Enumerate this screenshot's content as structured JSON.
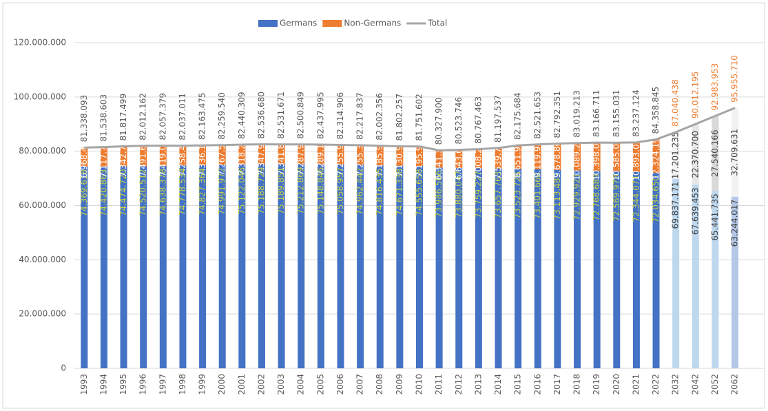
{
  "chart_data": {
    "type": "stacked_bar_line",
    "categories": [
      "1993",
      "1994",
      "1995",
      "1996",
      "1997",
      "1998",
      "1999",
      "2000",
      "2001",
      "2002",
      "2003",
      "2004",
      "2005",
      "2006",
      "2007",
      "2008",
      "2009",
      "2010",
      "2011",
      "2012",
      "2013",
      "2014",
      "2015",
      "2016",
      "2017",
      "2018",
      "2019",
      "2020",
      "2021",
      "2022",
      "2032",
      "2042",
      "2052",
      "2062"
    ],
    "series": [
      {
        "name": "Germans",
        "color": "#4472c4",
        "colors": [
          "#4472c4",
          "#4472c4",
          "#4472c4",
          "#4472c4",
          "#4472c4",
          "#4472c4",
          "#4472c4",
          "#4472c4",
          "#4472c4",
          "#4472c4",
          "#4472c4",
          "#4472c4",
          "#4472c4",
          "#4472c4",
          "#4472c4",
          "#4472c4",
          "#4472c4",
          "#4472c4",
          "#4472c4",
          "#4472c4",
          "#4472c4",
          "#4472c4",
          "#4472c4",
          "#4472c4",
          "#4472c4",
          "#4472c4",
          "#4472c4",
          "#4472c4",
          "#4472c4",
          "#4472c4",
          "#bdd7ee",
          "#bdd7ee",
          "#bdd7ee",
          "#b4c7e7"
        ],
        "values": [
          74369618,
          74420863,
          74474720,
          74520512,
          74638378,
          74778534,
          74827364,
          74991972,
          75122046,
          75188729,
          75189851,
          75212869,
          75148846,
          75058957,
          74962442,
          74816435,
          74671338,
          74555658,
          73986506,
          73880047,
          73759227,
          73657763,
          73523726,
          73401664,
          73113483,
          72929921,
          72768689,
          72569978,
          72344071,
          72034650,
          69837171,
          67639453,
          65441735,
          63244017
        ],
        "value_labels": [
          "74.369.618",
          "74.420.863",
          "74.474.720",
          "74.520.512",
          "74.638.378",
          "74.778.534",
          "74.827.364",
          "74.991.972",
          "75.122.046",
          "75.188.729",
          "75.189.851",
          "75.212.869",
          "75.148.846",
          "75.058.957",
          "74.962.442",
          "74.816.435",
          "74.671.338",
          "74.555.658",
          "73.986.506",
          "73.880.047",
          "73.759.227",
          "73.657.763",
          "73.523.726",
          "73.401.664",
          "73.113.483",
          "72.929.921",
          "72.768.689",
          "72.569.978",
          "72.344.071",
          "72.034.650",
          "69.837.171",
          "67.639.453",
          "65.441.735",
          "63.244.017"
        ]
      },
      {
        "name": "Non-Germans",
        "color": "#ed7d31",
        "colors": [
          "#ed7d31",
          "#ed7d31",
          "#ed7d31",
          "#ed7d31",
          "#ed7d31",
          "#ed7d31",
          "#ed7d31",
          "#ed7d31",
          "#ed7d31",
          "#ed7d31",
          "#ed7d31",
          "#ed7d31",
          "#ed7d31",
          "#ed7d31",
          "#ed7d31",
          "#ed7d31",
          "#ed7d31",
          "#ed7d31",
          "#ed7d31",
          "#ed7d31",
          "#ed7d31",
          "#ed7d31",
          "#ed7d31",
          "#ed7d31",
          "#ed7d31",
          "#ed7d31",
          "#ed7d31",
          "#ed7d31",
          "#ed7d31",
          "#ed7d31",
          "#f2f2f2",
          "#e7e6e6",
          "#d9d9d9",
          "#f2f2f2"
        ],
        "values": [
          6968475,
          7117740,
          7342779,
          7491650,
          7419001,
          7258477,
          7336111,
          7267568,
          7318263,
          7347951,
          7341820,
          7287980,
          7289149,
          7255949,
          7255395,
          7185921,
          7130919,
          7195944,
          6341394,
          6643699,
          7008236,
          7539774,
          8651958,
          9119989,
          9678868,
          10089292,
          10398022,
          10585053,
          10893053,
          12324195,
          17201235,
          22370700,
          27540166,
          32709631
        ],
        "value_labels": [
          "6.968.475",
          "7.117.740",
          "7.342.779",
          "7.491.650",
          "7.419.001",
          "7.258.477",
          "7.336.111",
          "7.267.568",
          "7.318.263",
          "7.347.951",
          "7.341.820",
          "7.287.980",
          "7.289.149",
          "7.255.949",
          "7.255.395",
          "7.185.921",
          "7.130.919",
          "7.195.944",
          "6.341.394",
          "6.643.699",
          "7.008.236",
          "7.539.774",
          "8.651.958",
          "9.119.989",
          "9.678.868",
          "10.089.292",
          "10.398.022",
          "10.585.053",
          "10.893.053",
          "12.324.195",
          "17.201.235",
          "22.370.700",
          "27.540.166",
          "32.709.631"
        ]
      },
      {
        "name": "Total",
        "color": "#a5a5a5",
        "values": [
          81338093,
          81538603,
          81817499,
          82012162,
          82057379,
          82037011,
          82163475,
          82259540,
          82440309,
          82536680,
          82531671,
          82500849,
          82437995,
          82314906,
          82217837,
          82002356,
          81802257,
          81751602,
          80327900,
          80523746,
          80767463,
          81197537,
          82175684,
          82521653,
          82792351,
          83019213,
          83166711,
          83155031,
          83237124,
          84358845,
          87040438,
          90012195,
          92983953,
          95955710
        ],
        "value_labels": [
          "81.338.093",
          "81.538.603",
          "81.817.499",
          "82.012.162",
          "82.057.379",
          "82.037.011",
          "82.163.475",
          "82.259.540",
          "82.440.309",
          "82.536.680",
          "82.531.671",
          "82.500.849",
          "82.437.995",
          "82.314.906",
          "82.217.837",
          "82.002.356",
          "81.802.257",
          "81.751.602",
          "80.327.900",
          "80.523.746",
          "80.767.463",
          "81.197.537",
          "82.175.684",
          "82.521.653",
          "82.792.351",
          "83.019.213",
          "83.166.711",
          "83.155.031",
          "83.237.124",
          "84.358.845",
          "87.040.438",
          "90.012.195",
          "92.983.953",
          "95.955.710"
        ],
        "value_label_colors": [
          "#595959",
          "#595959",
          "#595959",
          "#595959",
          "#595959",
          "#595959",
          "#595959",
          "#595959",
          "#595959",
          "#595959",
          "#595959",
          "#595959",
          "#595959",
          "#595959",
          "#595959",
          "#595959",
          "#595959",
          "#595959",
          "#595959",
          "#595959",
          "#595959",
          "#595959",
          "#595959",
          "#595959",
          "#595959",
          "#595959",
          "#595959",
          "#595959",
          "#595959",
          "#595959",
          "#ed7d31",
          "#ed7d31",
          "#ed7d31",
          "#ed7d31"
        ]
      }
    ],
    "ylim": [
      0,
      120000000
    ],
    "yticks": [
      0,
      {
        "value": 20000000,
        "label": "20.000.000"
      },
      {
        "value": 40000000,
        "label": "40.000.000"
      },
      {
        "value": 60000000,
        "label": "60.000.000"
      },
      {
        "value": 80000000,
        "label": "80.000.000"
      },
      {
        "value": 100000000,
        "label": "100.000.000"
      },
      {
        "value": 120000000,
        "label": "120.000.000"
      }
    ],
    "grid": true,
    "legend": "top"
  }
}
